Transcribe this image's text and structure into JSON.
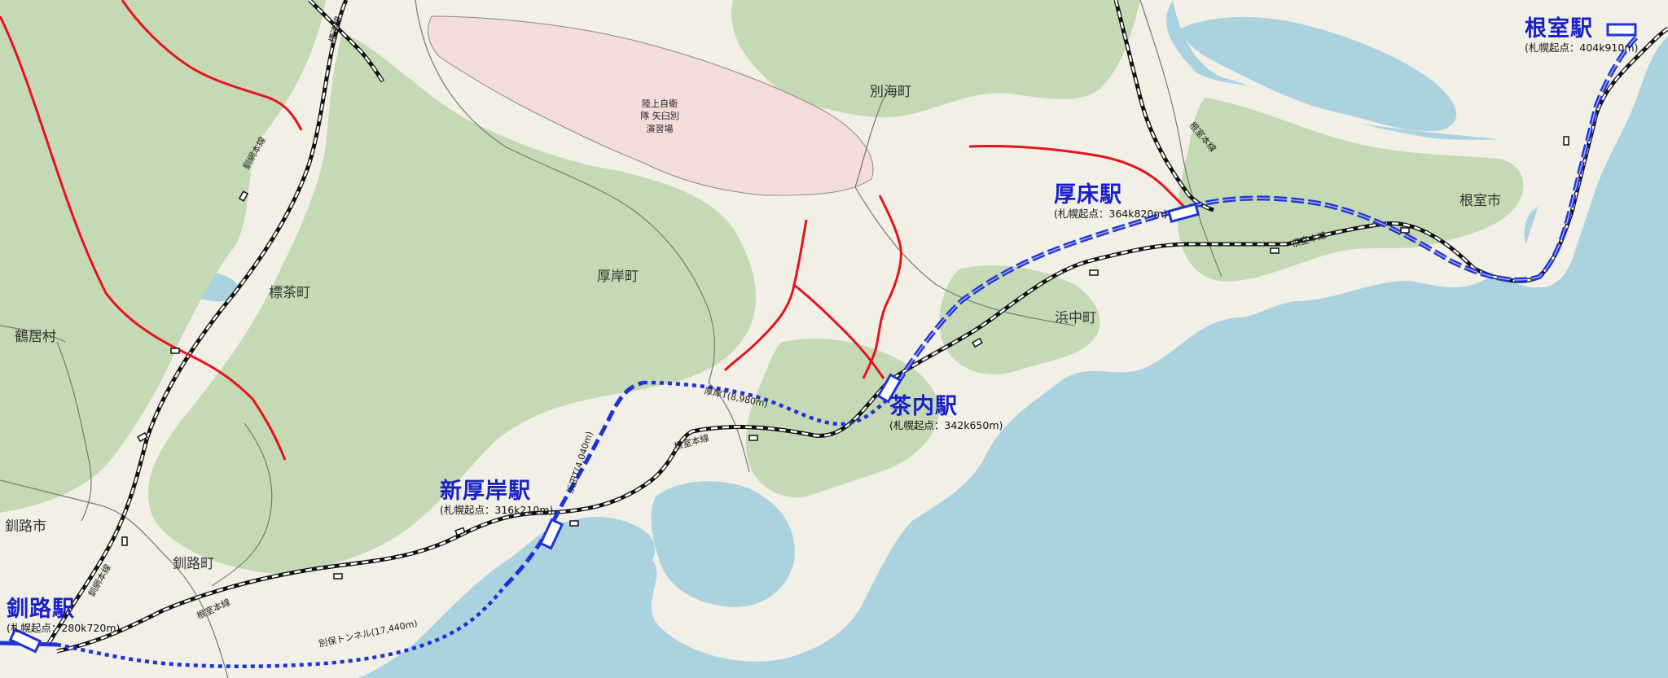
{
  "stations": [
    {
      "id": "kushiro",
      "name": "釧路駅",
      "sub": "(札幌起点：280k720m)"
    },
    {
      "id": "shin-akkeshi",
      "name": "新厚岸駅",
      "sub": "(札幌起点：316k210m)"
    },
    {
      "id": "chanai",
      "name": "茶内駅",
      "sub": "(札幌起点：342k650m)"
    },
    {
      "id": "attoko",
      "name": "厚床駅",
      "sub": "(札幌起点：364k820m)"
    },
    {
      "id": "nemuro",
      "name": "根室駅",
      "sub": "(札幌起点：404k910m)"
    }
  ],
  "municipalities": {
    "betsukai": "別海町",
    "shibecha": "標茶町",
    "akkeshi": "厚岸町",
    "nemuro_city": "根室市",
    "hamanaka": "浜中町",
    "tsurui": "鶴居村",
    "kushiro_city": "釧路市",
    "kushiro_town": "釧路町",
    "training_area": "陸上自衛隊 矢臼別 演習場"
  },
  "lines": {
    "nemuro_main_1": "根室本線",
    "nemuro_main_2": "根室本線",
    "nemuro_main_3": "根室本線",
    "nemuro_main_4": "根室本線",
    "senmo_1": "釧網本線",
    "senmo_2": "釧網本線",
    "shibetsu": "標津線"
  },
  "tunnels": {
    "akkeshi": "厚岸T(8,980m)",
    "hamada": "浜田T(4,040m)",
    "betsuho": "別保トンネル(17,440m)"
  },
  "colors": {
    "sea": "#aad3df",
    "forest": "#c5dab4",
    "land": "#f1efe6",
    "training_area": "#f4dcdc",
    "new_line": "#1f32d6",
    "old_line": "#e8121c",
    "existing_line": "#111111",
    "station_name": "#1a20c8"
  }
}
